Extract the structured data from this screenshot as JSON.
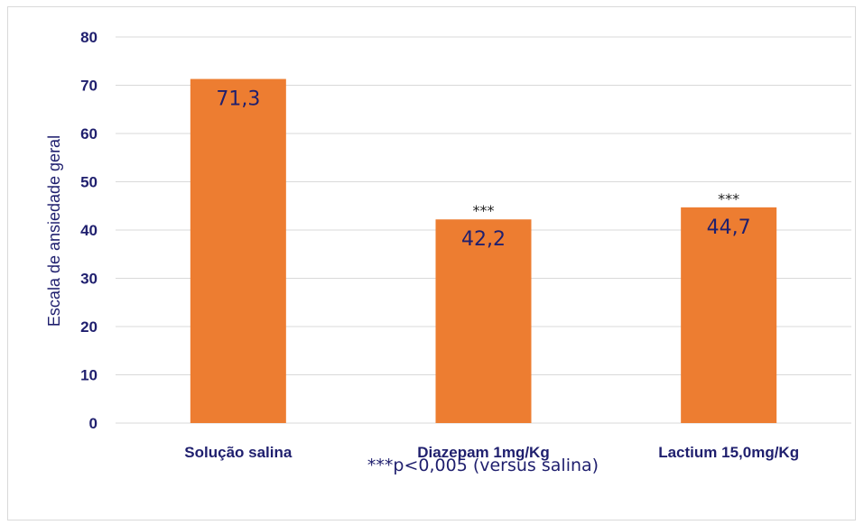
{
  "chart_data": {
    "type": "bar",
    "categories": [
      "Solução salina",
      "Diazepam 1mg/Kg",
      "Lactium 15,0mg/Kg"
    ],
    "values": [
      71.3,
      42.2,
      44.7
    ],
    "data_labels": [
      "71,3",
      "42,2",
      "44,7"
    ],
    "significance_marks": [
      "",
      "***",
      "***"
    ],
    "ylabel": "Escala de ansiedade geral",
    "xlabel": "",
    "footnote": "***p<0,005 (versus salina)",
    "ylim": [
      0,
      80
    ],
    "yticks": [
      0,
      10,
      20,
      30,
      40,
      50,
      60,
      70,
      80
    ],
    "grid": true,
    "bar_color": "#ed7d31",
    "grid_color": "#d9d9d9",
    "text_color": "#1f1f6e"
  }
}
